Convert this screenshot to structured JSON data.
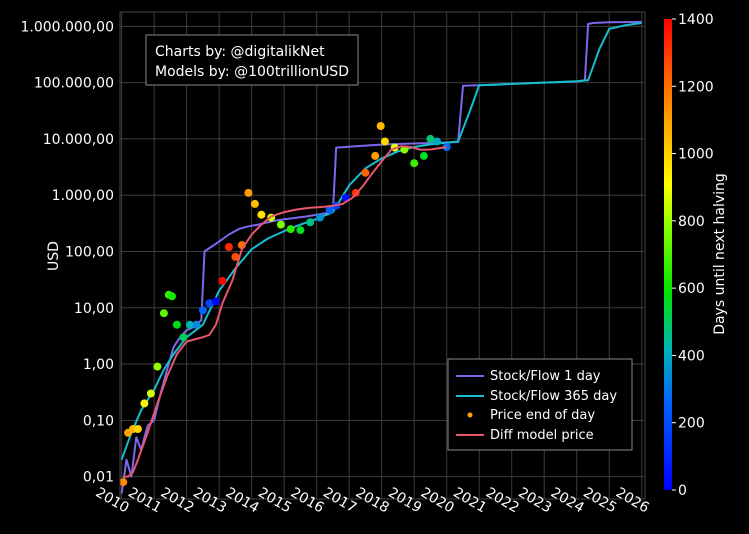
{
  "chart_data": {
    "type": "scatter",
    "credits": [
      "Charts by: @digitalikNet",
      "Models by: @100trillionUSD"
    ],
    "ylabel": "USD",
    "yscale": "log",
    "ylim": [
      0.004,
      1800000
    ],
    "yticks": [
      0.01,
      0.1,
      1,
      10,
      100,
      1000,
      10000,
      100000,
      1000000
    ],
    "ytick_labels": [
      "0,01",
      "0,10",
      "1,00",
      "10,00",
      "100,00",
      "1.000,00",
      "10.000,00",
      "100.000,00",
      "1.000.000,00"
    ],
    "xlim": [
      2009.95,
      2026.1
    ],
    "xticks": [
      2010,
      2011,
      2012,
      2013,
      2014,
      2015,
      2016,
      2017,
      2018,
      2019,
      2020,
      2021,
      2022,
      2023,
      2024,
      2025,
      2026
    ],
    "xtick_labels": [
      "2010",
      "2011",
      "2012",
      "2013",
      "2014",
      "2015",
      "2016",
      "2017",
      "2018",
      "2019",
      "2020",
      "2021",
      "2022",
      "2023",
      "2024",
      "2025",
      "2026"
    ],
    "grid": true,
    "legend_position": "bottom-right",
    "colorbar": {
      "label": "Days until next halving",
      "range": [
        0,
        1400
      ],
      "ticks": [
        0,
        200,
        400,
        600,
        800,
        1000,
        1200,
        1400
      ],
      "colorscale": "jet"
    },
    "series": [
      {
        "name": "Stock/Flow 1 day",
        "color": "#7b68ee",
        "x": [
          2010.0,
          2010.15,
          2010.3,
          2010.45,
          2010.6,
          2010.8,
          2011.0,
          2011.2,
          2011.4,
          2011.6,
          2011.8,
          2012.0,
          2012.2,
          2012.45,
          2012.55,
          2012.75,
          2013.0,
          2013.3,
          2013.6,
          2013.9,
          2014.2,
          2014.5,
          2014.8,
          2015.1,
          2015.4,
          2015.7,
          2016.0,
          2016.3,
          2016.5,
          2016.6,
          2016.9,
          2017.2,
          2017.5,
          2017.8,
          2018.1,
          2018.4,
          2018.7,
          2019.0,
          2019.3,
          2019.6,
          2019.9,
          2020.2,
          2020.35,
          2020.5,
          2021.0,
          2022.0,
          2023.0,
          2024.0,
          2024.25,
          2024.35,
          2024.5,
          2025.0,
          2026.0
        ],
        "y": [
          0.005,
          0.02,
          0.01,
          0.05,
          0.03,
          0.08,
          0.1,
          0.3,
          0.8,
          2,
          3,
          4,
          4.5,
          6,
          100,
          120,
          150,
          200,
          250,
          280,
          300,
          330,
          360,
          380,
          400,
          420,
          450,
          480,
          500,
          7000,
          7200,
          7400,
          7600,
          7800,
          8000,
          8100,
          8200,
          8300,
          8400,
          8500,
          8600,
          8700,
          8800,
          88000,
          90000,
          95000,
          100000,
          105000,
          110000,
          1100000,
          1150000,
          1180000,
          1200000
        ]
      },
      {
        "name": "Stock/Flow 365 day",
        "color": "#17becf",
        "x": [
          2010.0,
          2010.3,
          2010.6,
          2011.0,
          2011.3,
          2011.6,
          2012.0,
          2012.5,
          2013.0,
          2013.5,
          2014.0,
          2014.5,
          2015.0,
          2015.5,
          2016.0,
          2016.5,
          2017.0,
          2017.5,
          2018.0,
          2018.5,
          2019.0,
          2019.5,
          2020.0,
          2020.35,
          2020.7,
          2021.0,
          2021.5,
          2022.0,
          2023.0,
          2024.0,
          2024.35,
          2024.7,
          2025.0,
          2025.5,
          2026.0
        ],
        "y": [
          0.02,
          0.06,
          0.15,
          0.35,
          0.8,
          1.5,
          3,
          5,
          20,
          50,
          110,
          170,
          230,
          300,
          380,
          500,
          1500,
          3000,
          4500,
          6000,
          7200,
          8000,
          8600,
          9000,
          30000,
          90000,
          92000,
          95000,
          100000,
          106000,
          110000,
          400000,
          900000,
          1050000,
          1150000
        ]
      },
      {
        "name": "Price end of day",
        "color": "#ffa500",
        "colored_by": "Days until next halving",
        "x": [
          2010.05,
          2010.2,
          2010.35,
          2010.5,
          2010.7,
          2010.9,
          2011.1,
          2011.3,
          2011.45,
          2011.55,
          2011.7,
          2011.9,
          2012.1,
          2012.3,
          2012.5,
          2012.7,
          2012.9,
          2013.1,
          2013.3,
          2013.5,
          2013.7,
          2013.9,
          2014.1,
          2014.3,
          2014.6,
          2014.9,
          2015.2,
          2015.5,
          2015.8,
          2016.1,
          2016.4,
          2016.6,
          2016.9,
          2017.2,
          2017.5,
          2017.8,
          2017.97,
          2018.1,
          2018.4,
          2018.7,
          2019.0,
          2019.3,
          2019.5,
          2019.7,
          2020.0
        ],
        "y": [
          0.008,
          0.06,
          0.07,
          0.07,
          0.2,
          0.3,
          0.9,
          8,
          17,
          16,
          5,
          3,
          5,
          5,
          9,
          12,
          13,
          30,
          120,
          80,
          130,
          1100,
          700,
          450,
          400,
          300,
          250,
          240,
          330,
          400,
          550,
          650,
          900,
          1100,
          2500,
          5000,
          17000,
          9000,
          7000,
          6500,
          3700,
          5000,
          10000,
          9000,
          7200
        ],
        "days": [
          1150,
          1100,
          1050,
          1000,
          930,
          860,
          790,
          720,
          660,
          620,
          570,
          500,
          420,
          340,
          260,
          190,
          10,
          1390,
          1330,
          1260,
          1190,
          1110,
          1040,
          960,
          860,
          760,
          650,
          560,
          460,
          350,
          250,
          150,
          40,
          1320,
          1220,
          1110,
          1050,
          990,
          880,
          780,
          670,
          560,
          480,
          400,
          280
        ]
      },
      {
        "name": "Diff model price",
        "color": "#e8566a",
        "x": [
          2010.05,
          2010.2,
          2010.35,
          2010.5,
          2010.8,
          2011.1,
          2011.4,
          2011.7,
          2012.0,
          2012.3,
          2012.5,
          2012.7,
          2012.9,
          2013.1,
          2013.4,
          2013.7,
          2014.0,
          2014.3,
          2014.6,
          2015.0,
          2015.4,
          2015.8,
          2016.2,
          2016.5,
          2016.8,
          2017.1,
          2017.4,
          2017.7,
          2018.0,
          2018.3,
          2018.6,
          2018.9,
          2019.2,
          2019.5,
          2019.8,
          2020.0
        ],
        "y": [
          0.01,
          0.01,
          0.012,
          0.02,
          0.06,
          0.2,
          0.6,
          1.5,
          2.5,
          2.8,
          3,
          3.3,
          5,
          12,
          30,
          110,
          200,
          300,
          420,
          500,
          560,
          600,
          620,
          650,
          700,
          900,
          1400,
          2400,
          4000,
          6500,
          7400,
          7200,
          6400,
          6500,
          6900,
          7100
        ]
      }
    ]
  }
}
